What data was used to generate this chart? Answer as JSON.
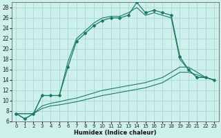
{
  "xlabel": "Humidex (Indice chaleur)",
  "bg_color": "#cdf0ea",
  "grid_color": "#a8ddd6",
  "line_color": "#1a7a6a",
  "xlim": [
    -0.5,
    23.5
  ],
  "ylim": [
    6,
    29
  ],
  "xticks": [
    0,
    1,
    2,
    3,
    4,
    5,
    6,
    7,
    8,
    9,
    10,
    11,
    12,
    13,
    14,
    15,
    16,
    17,
    18,
    19,
    20,
    21,
    22,
    23
  ],
  "yticks": [
    6,
    8,
    10,
    12,
    14,
    16,
    18,
    20,
    22,
    24,
    26,
    28
  ],
  "series1_x": [
    0,
    1,
    2,
    3,
    4,
    5,
    6,
    7,
    8,
    9,
    10,
    11,
    12,
    13,
    14,
    15,
    16,
    17,
    18,
    19,
    20,
    21,
    22,
    23
  ],
  "series1_y": [
    7.5,
    6.5,
    7.5,
    11.0,
    11.0,
    11.0,
    16.5,
    21.5,
    23.0,
    24.5,
    25.5,
    26.0,
    26.0,
    26.5,
    29.0,
    27.0,
    27.5,
    27.0,
    26.5,
    18.5,
    16.0,
    14.5,
    14.5,
    14.0
  ],
  "series2_x": [
    0,
    1,
    2,
    3,
    4,
    5,
    6,
    7,
    8,
    9,
    10,
    11,
    12,
    13,
    14,
    15,
    16,
    17,
    18,
    19,
    20,
    21,
    22,
    23
  ],
  "series2_y": [
    7.5,
    6.5,
    7.5,
    11.0,
    11.0,
    11.0,
    17.5,
    22.0,
    23.5,
    25.0,
    26.0,
    26.3,
    26.3,
    27.0,
    28.0,
    26.5,
    27.0,
    26.5,
    26.0,
    18.0,
    16.0,
    14.5,
    14.5,
    14.0
  ],
  "series3_x": [
    0,
    1,
    2,
    3,
    4,
    5,
    6,
    7,
    8,
    9,
    10,
    11,
    12,
    13,
    14,
    15,
    16,
    17,
    18,
    19,
    20,
    21,
    22,
    23
  ],
  "series3_y": [
    7.5,
    7.5,
    7.5,
    9.0,
    9.5,
    9.8,
    10.2,
    10.5,
    11.0,
    11.5,
    12.0,
    12.3,
    12.6,
    12.9,
    13.2,
    13.5,
    14.0,
    14.5,
    15.5,
    16.5,
    16.5,
    15.5,
    14.5,
    14.0
  ],
  "series4_x": [
    0,
    1,
    2,
    3,
    4,
    5,
    6,
    7,
    8,
    9,
    10,
    11,
    12,
    13,
    14,
    15,
    16,
    17,
    18,
    19,
    20,
    21,
    22,
    23
  ],
  "series4_y": [
    7.5,
    7.5,
    7.5,
    8.5,
    9.0,
    9.2,
    9.5,
    9.8,
    10.2,
    10.6,
    11.0,
    11.3,
    11.6,
    11.9,
    12.2,
    12.5,
    13.0,
    13.5,
    14.5,
    15.5,
    15.5,
    15.0,
    14.5,
    14.0
  ]
}
